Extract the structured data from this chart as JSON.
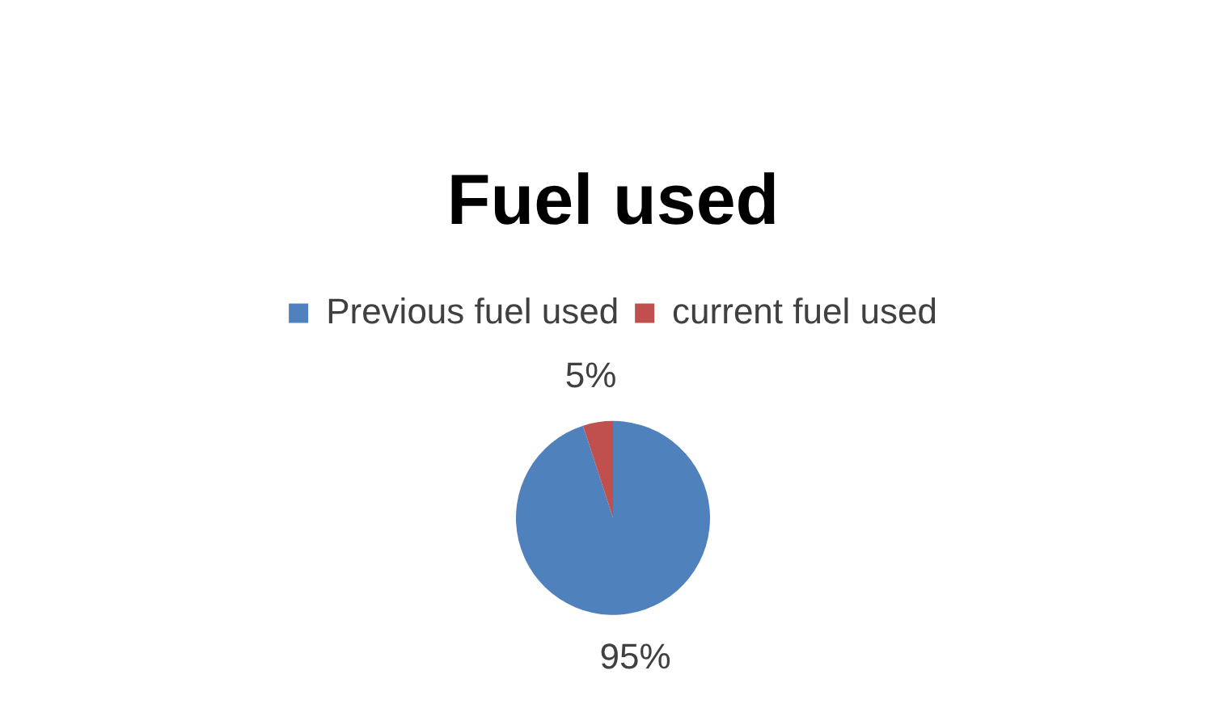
{
  "chart_data": {
    "type": "pie",
    "title": "Fuel used",
    "categories": [
      "Previous fuel used",
      "current fuel used"
    ],
    "values": [
      95,
      5
    ],
    "colors": [
      "#4f81bd",
      "#c0504d"
    ],
    "value_labels": [
      "95%",
      "5%"
    ],
    "legend": "top"
  }
}
